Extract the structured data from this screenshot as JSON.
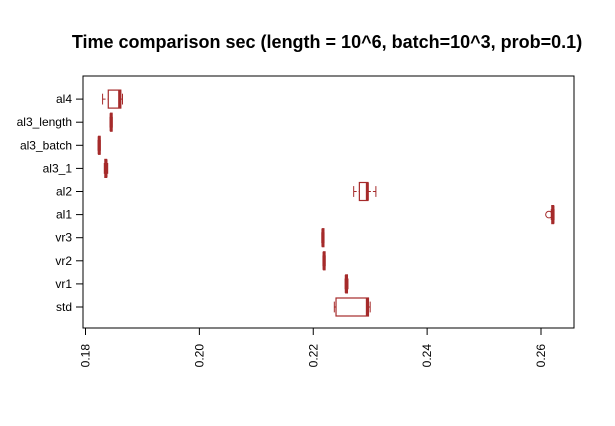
{
  "chart_data": {
    "type": "boxplot",
    "orientation": "horizontal",
    "title": "Time comparison sec (length = 10^6, batch=10^3, prob=0.1)",
    "xlabel": "",
    "ylabel": "",
    "xlim": [
      0.18,
      0.26
    ],
    "x_ticks": [
      0.18,
      0.2,
      0.22,
      0.24,
      0.26
    ],
    "x_tick_labels": [
      "0.18",
      "0.20",
      "0.22",
      "0.24",
      "0.26"
    ],
    "grid": false,
    "legend": "none",
    "box_color": "#A52A2A",
    "categories": [
      "std",
      "vr1",
      "vr2",
      "vr3",
      "al1",
      "al2",
      "al3_1",
      "al3_batch",
      "al3_length",
      "al4"
    ],
    "boxes": [
      {
        "name": "std",
        "whisker_low": 0.2237,
        "q1": 0.224,
        "median": 0.2295,
        "q3": 0.2297,
        "whisker_high": 0.23,
        "outliers": []
      },
      {
        "name": "vr1",
        "whisker_low": 0.2256,
        "q1": 0.2257,
        "median": 0.2258,
        "q3": 0.226,
        "whisker_high": 0.2261,
        "outliers": []
      },
      {
        "name": "vr2",
        "whisker_low": 0.2217,
        "q1": 0.2218,
        "median": 0.2219,
        "q3": 0.222,
        "whisker_high": 0.2221,
        "outliers": []
      },
      {
        "name": "vr3",
        "whisker_low": 0.2215,
        "q1": 0.2216,
        "median": 0.2217,
        "q3": 0.2218,
        "whisker_high": 0.2219,
        "outliers": []
      },
      {
        "name": "al1",
        "whisker_low": 0.2618,
        "q1": 0.2619,
        "median": 0.2621,
        "q3": 0.2622,
        "whisker_high": 0.2623,
        "outliers": [
          0.2614
        ]
      },
      {
        "name": "al2",
        "whisker_low": 0.2271,
        "q1": 0.2281,
        "median": 0.2295,
        "q3": 0.2296,
        "whisker_high": 0.231,
        "outliers": []
      },
      {
        "name": "al3_1",
        "whisker_low": 0.1833,
        "q1": 0.1834,
        "median": 0.1836,
        "q3": 0.1837,
        "whisker_high": 0.1839,
        "outliers": []
      },
      {
        "name": "al3_batch",
        "whisker_low": 0.1822,
        "q1": 0.1823,
        "median": 0.1824,
        "q3": 0.1825,
        "whisker_high": 0.1826,
        "outliers": []
      },
      {
        "name": "al3_length",
        "whisker_low": 0.1843,
        "q1": 0.1844,
        "median": 0.1845,
        "q3": 0.1846,
        "whisker_high": 0.1847,
        "outliers": []
      },
      {
        "name": "al4",
        "whisker_low": 0.183,
        "q1": 0.184,
        "median": 0.186,
        "q3": 0.1862,
        "whisker_high": 0.1865,
        "outliers": []
      }
    ]
  }
}
